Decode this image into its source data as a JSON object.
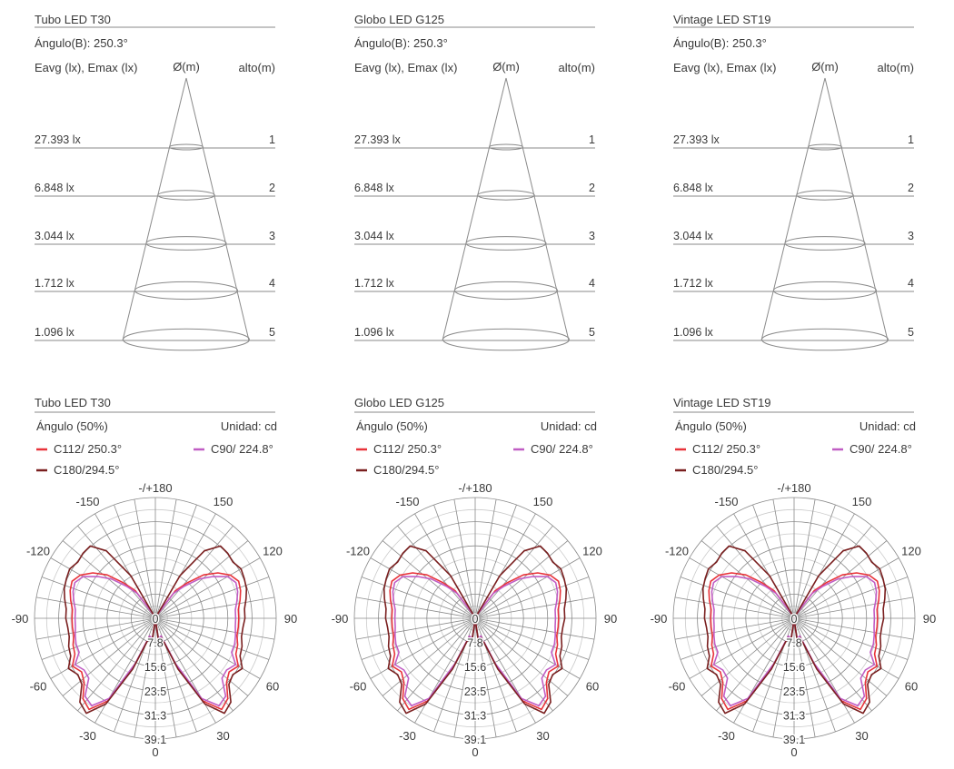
{
  "accent": {
    "c112": "#e8333a",
    "c90": "#c05dc4",
    "c180": "#7a1f1f",
    "line": "#8a8a8a",
    "text": "#3a3a3a"
  },
  "products": [
    {
      "title": "Tubo LED T30",
      "angle_b": "Ángulo(B): 250.3°",
      "eavg_label": "Eavg (lx), Emax (lx)",
      "diam_label": "Ø(m)",
      "height_label": "alto(m)",
      "levels": [
        {
          "lux": "27.393 lx",
          "height": "1"
        },
        {
          "lux": "6.848 lx",
          "height": "2"
        },
        {
          "lux": "3.044 lx",
          "height": "3"
        },
        {
          "lux": "1.712 lx",
          "height": "4"
        },
        {
          "lux": "1.096 lx",
          "height": "5"
        }
      ],
      "polar_title": "Tubo LED T30",
      "angle50": "Ángulo (50%)",
      "unit": "Unidad: cd",
      "legend": [
        "C112/ 250.3°",
        "C90/ 224.8°",
        "C180/294.5°"
      ]
    },
    {
      "title": "Globo LED G125",
      "angle_b": "Ángulo(B): 250.3°",
      "eavg_label": "Eavg (lx), Emax (lx)",
      "diam_label": "Ø(m)",
      "height_label": "alto(m)",
      "levels": [
        {
          "lux": "27.393 lx",
          "height": "1"
        },
        {
          "lux": "6.848 lx",
          "height": "2"
        },
        {
          "lux": "3.044 lx",
          "height": "3"
        },
        {
          "lux": "1.712 lx",
          "height": "4"
        },
        {
          "lux": "1.096 lx",
          "height": "5"
        }
      ],
      "polar_title": "Globo LED G125",
      "angle50": "Ángulo (50%)",
      "unit": "Unidad: cd",
      "legend": [
        "C112/ 250.3°",
        "C90/ 224.8°",
        "C180/294.5°"
      ]
    },
    {
      "title": "Vintage LED ST19",
      "angle_b": "Ángulo(B): 250.3°",
      "eavg_label": "Eavg (lx), Emax (lx)",
      "diam_label": "Ø(m)",
      "height_label": "alto(m)",
      "levels": [
        {
          "lux": "27.393 lx",
          "height": "1"
        },
        {
          "lux": "6.848 lx",
          "height": "2"
        },
        {
          "lux": "3.044 lx",
          "height": "3"
        },
        {
          "lux": "1.712 lx",
          "height": "4"
        },
        {
          "lux": "1.096 lx",
          "height": "5"
        }
      ],
      "polar_title": "Vintage LED ST19",
      "angle50": "Ángulo (50%)",
      "unit": "Unidad: cd",
      "legend": [
        "C112/ 250.3°",
        "C90/ 224.8°",
        "C180/294.5°"
      ]
    }
  ],
  "polar": {
    "angle_labels": [
      {
        "deg": 180,
        "text": "-/+180"
      },
      {
        "deg": -150,
        "text": "-150"
      },
      {
        "deg": 150,
        "text": "150"
      },
      {
        "deg": -120,
        "text": "-120"
      },
      {
        "deg": 120,
        "text": "120"
      },
      {
        "deg": -90,
        "text": "-90"
      },
      {
        "deg": 90,
        "text": "90"
      },
      {
        "deg": -60,
        "text": "-60"
      },
      {
        "deg": 60,
        "text": "60"
      },
      {
        "deg": -30,
        "text": "-30"
      },
      {
        "deg": 30,
        "text": "30"
      },
      {
        "deg": 0,
        "text": "0"
      }
    ],
    "radial_labels": [
      "0",
      "7.8",
      "15.6",
      "23.5",
      "31.3",
      "39.1"
    ],
    "rmax": 39.1
  },
  "chart_data": {
    "type": "polar",
    "angle_unit": "deg",
    "r_unit": "cd",
    "rlim": [
      0,
      39.1
    ],
    "series": [
      {
        "name": "C112/ 250.3°",
        "color": "#e8333a",
        "points": [
          [
            0,
            0.9
          ],
          [
            6,
            1.1
          ],
          [
            8,
            6.5
          ],
          [
            12,
            6.8
          ],
          [
            18,
            6.3
          ],
          [
            24,
            17
          ],
          [
            30,
            31
          ],
          [
            36,
            36.5
          ],
          [
            42,
            35
          ],
          [
            48,
            31
          ],
          [
            54,
            29.5
          ],
          [
            60,
            31
          ],
          [
            66,
            28.5
          ],
          [
            72,
            28
          ],
          [
            78,
            27
          ],
          [
            84,
            27
          ],
          [
            90,
            27
          ],
          [
            96,
            27
          ],
          [
            102,
            28
          ],
          [
            108,
            29
          ],
          [
            114,
            29.5
          ],
          [
            120,
            28
          ],
          [
            126,
            25
          ],
          [
            132,
            21
          ],
          [
            138,
            15.5
          ],
          [
            144,
            11
          ],
          [
            150,
            2
          ],
          [
            155,
            0.4
          ],
          [
            205,
            0.4
          ],
          [
            210,
            2
          ],
          [
            216,
            11
          ],
          [
            222,
            15.5
          ],
          [
            228,
            21
          ],
          [
            234,
            25
          ],
          [
            240,
            28
          ],
          [
            246,
            29.5
          ],
          [
            252,
            29
          ],
          [
            258,
            28
          ],
          [
            264,
            27
          ],
          [
            270,
            27
          ],
          [
            276,
            27
          ],
          [
            282,
            27
          ],
          [
            288,
            28
          ],
          [
            294,
            28.5
          ],
          [
            300,
            31
          ],
          [
            306,
            29.5
          ],
          [
            312,
            31
          ],
          [
            318,
            35
          ],
          [
            324,
            36.5
          ],
          [
            330,
            31
          ],
          [
            336,
            17
          ],
          [
            342,
            6.3
          ],
          [
            348,
            6.8
          ],
          [
            352,
            6.5
          ],
          [
            354,
            1.1
          ]
        ]
      },
      {
        "name": "C90/ 224.8°",
        "color": "#c05dc4",
        "points": [
          [
            0,
            0.9
          ],
          [
            6,
            1.1
          ],
          [
            8,
            6
          ],
          [
            12,
            6.5
          ],
          [
            18,
            6
          ],
          [
            24,
            16
          ],
          [
            30,
            30
          ],
          [
            36,
            35
          ],
          [
            42,
            34
          ],
          [
            48,
            29
          ],
          [
            54,
            28.5
          ],
          [
            60,
            30
          ],
          [
            66,
            27
          ],
          [
            72,
            27
          ],
          [
            78,
            26.5
          ],
          [
            84,
            26
          ],
          [
            90,
            26
          ],
          [
            96,
            26
          ],
          [
            102,
            27
          ],
          [
            108,
            28
          ],
          [
            114,
            28.5
          ],
          [
            120,
            27
          ],
          [
            126,
            23
          ],
          [
            132,
            19
          ],
          [
            138,
            14
          ],
          [
            144,
            10
          ],
          [
            150,
            1.8
          ],
          [
            155,
            0.4
          ],
          [
            205,
            0.4
          ],
          [
            210,
            1.8
          ],
          [
            216,
            10
          ],
          [
            222,
            14
          ],
          [
            228,
            19
          ],
          [
            234,
            23
          ],
          [
            240,
            27
          ],
          [
            246,
            28.5
          ],
          [
            252,
            28
          ],
          [
            258,
            27
          ],
          [
            264,
            26
          ],
          [
            270,
            26
          ],
          [
            276,
            26
          ],
          [
            282,
            26.5
          ],
          [
            288,
            27
          ],
          [
            294,
            27
          ],
          [
            300,
            30
          ],
          [
            306,
            28.5
          ],
          [
            312,
            29
          ],
          [
            318,
            34
          ],
          [
            324,
            35
          ],
          [
            330,
            30
          ],
          [
            336,
            16
          ],
          [
            342,
            6
          ],
          [
            348,
            6.5
          ],
          [
            352,
            6
          ],
          [
            354,
            1.1
          ]
        ]
      },
      {
        "name": "C180/294.5°",
        "color": "#7a1f1f",
        "points": [
          [
            0,
            0.9
          ],
          [
            6,
            1.1
          ],
          [
            8,
            6.8
          ],
          [
            12,
            7.2
          ],
          [
            18,
            6.6
          ],
          [
            24,
            18
          ],
          [
            30,
            32
          ],
          [
            36,
            38
          ],
          [
            42,
            36.5
          ],
          [
            48,
            32
          ],
          [
            54,
            31
          ],
          [
            60,
            32.5
          ],
          [
            66,
            30
          ],
          [
            72,
            29.5
          ],
          [
            78,
            28.5
          ],
          [
            84,
            28.5
          ],
          [
            90,
            29
          ],
          [
            96,
            29
          ],
          [
            102,
            30
          ],
          [
            108,
            31
          ],
          [
            114,
            31.5
          ],
          [
            120,
            32
          ],
          [
            126,
            31
          ],
          [
            132,
            31.5
          ],
          [
            138,
            31.5
          ],
          [
            144,
            27
          ],
          [
            150,
            16
          ],
          [
            155,
            0.5
          ],
          [
            205,
            0.5
          ],
          [
            210,
            16
          ],
          [
            216,
            27
          ],
          [
            222,
            31.5
          ],
          [
            228,
            31.5
          ],
          [
            234,
            31
          ],
          [
            240,
            32
          ],
          [
            246,
            31.5
          ],
          [
            252,
            31
          ],
          [
            258,
            30
          ],
          [
            264,
            29
          ],
          [
            270,
            29
          ],
          [
            276,
            28.5
          ],
          [
            282,
            28.5
          ],
          [
            288,
            29.5
          ],
          [
            294,
            30
          ],
          [
            300,
            32.5
          ],
          [
            306,
            31
          ],
          [
            312,
            32
          ],
          [
            318,
            36.5
          ],
          [
            324,
            38
          ],
          [
            330,
            32
          ],
          [
            336,
            18
          ],
          [
            342,
            6.6
          ],
          [
            348,
            7.2
          ],
          [
            352,
            6.8
          ],
          [
            354,
            1.1
          ]
        ]
      }
    ]
  }
}
